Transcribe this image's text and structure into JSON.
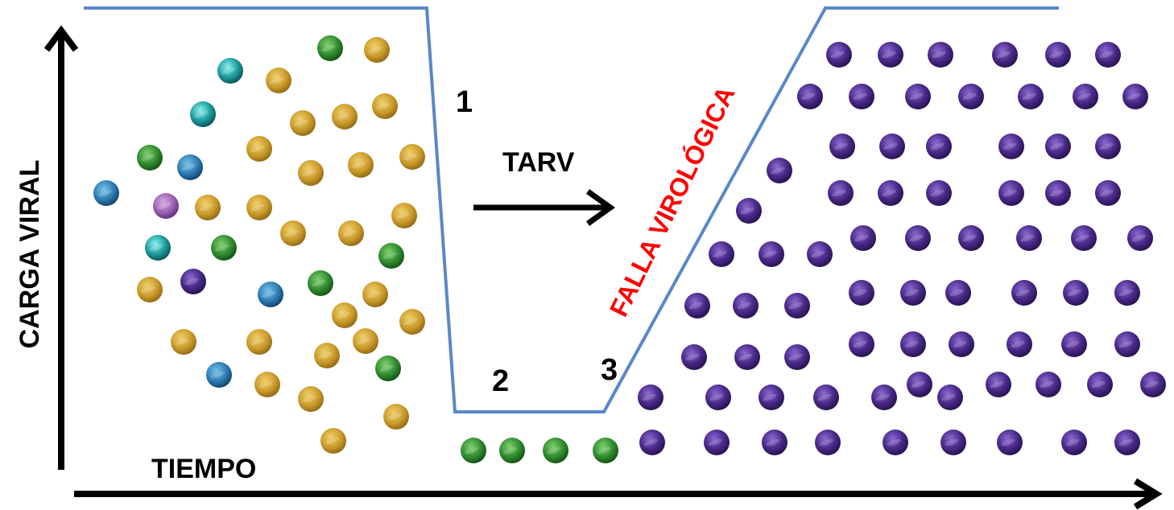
{
  "axes": {
    "y_label": "CARGA VIRAL",
    "x_label": "TIEMPO"
  },
  "phases": {
    "marker_1": "1",
    "marker_2": "2",
    "marker_3": "3"
  },
  "treatment": {
    "label": "TARV"
  },
  "failure": {
    "label": "FALLA VIROLÓGICA"
  },
  "colors": {
    "curve": "#5b87c7",
    "failure_text": "#ff0000",
    "virus_gold": "#c99a2a",
    "virus_green": "#2e8a2e",
    "virus_teal": "#1fa0a0",
    "virus_blue": "#2a7ab0",
    "virus_lilac": "#9a5fb0",
    "virus_purple": "#4a2a8a"
  }
}
